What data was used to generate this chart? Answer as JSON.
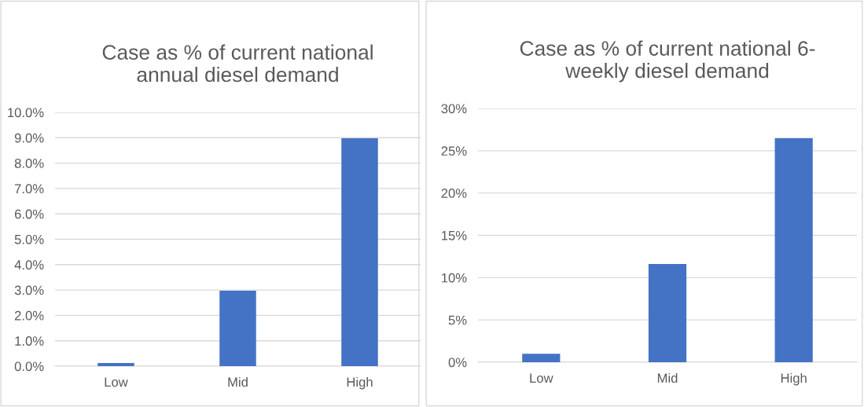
{
  "chart_data": [
    {
      "type": "bar",
      "title": "Case as % of current national\nannual diesel demand",
      "categories": [
        "Low",
        "Mid",
        "High"
      ],
      "values": [
        0.12,
        2.97,
        8.98
      ],
      "color": "#4472c4",
      "ylim": [
        0,
        10
      ],
      "yticks": [
        {
          "value": 0,
          "label": "0.0%"
        },
        {
          "value": 1,
          "label": "1.0%"
        },
        {
          "value": 2,
          "label": "2.0%"
        },
        {
          "value": 3,
          "label": "3.0%"
        },
        {
          "value": 4,
          "label": "4.0%"
        },
        {
          "value": 5,
          "label": "5.0%"
        },
        {
          "value": 6,
          "label": "6.0%"
        },
        {
          "value": 7,
          "label": "7.0%"
        },
        {
          "value": 8,
          "label": "8.0%"
        },
        {
          "value": 9,
          "label": "9.0%"
        },
        {
          "value": 10,
          "label": "10.0%"
        }
      ],
      "grid": "y"
    },
    {
      "type": "bar",
      "title": "Case as % of current national 6-\nweekly diesel demand",
      "categories": [
        "Low",
        "Mid",
        "High"
      ],
      "values": [
        1.0,
        11.6,
        26.5
      ],
      "color": "#4472c4",
      "ylim": [
        0,
        30
      ],
      "yticks": [
        {
          "value": 0,
          "label": "0%"
        },
        {
          "value": 5,
          "label": "5%"
        },
        {
          "value": 10,
          "label": "10%"
        },
        {
          "value": 15,
          "label": "15%"
        },
        {
          "value": 20,
          "label": "20%"
        },
        {
          "value": 25,
          "label": "25%"
        },
        {
          "value": 30,
          "label": "30%"
        }
      ],
      "grid": "y"
    }
  ]
}
